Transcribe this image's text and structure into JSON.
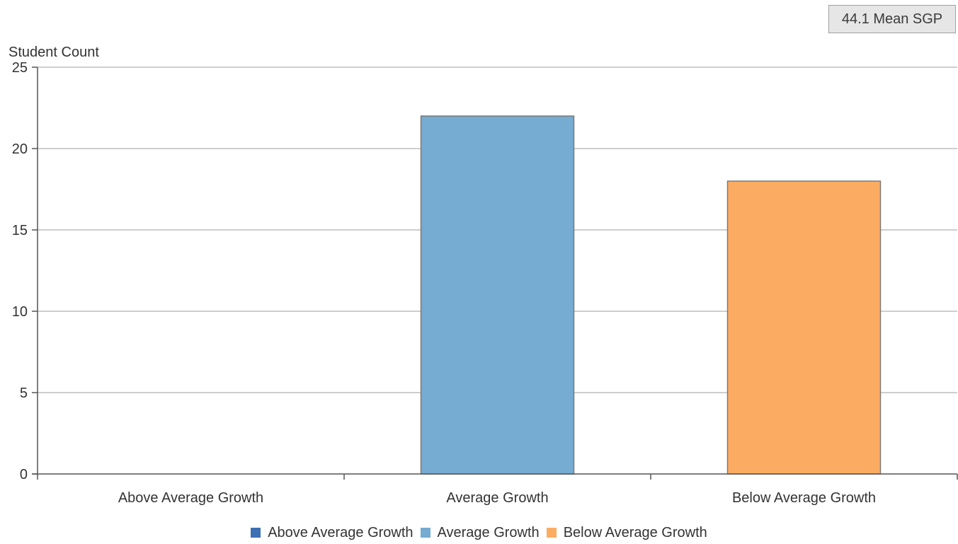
{
  "mean_badge": {
    "label": "44.1 Mean SGP"
  },
  "chart_data": {
    "type": "bar",
    "ylabel": "Student Count",
    "xlabel": "",
    "ylim": [
      0,
      25
    ],
    "yticks": [
      0,
      5,
      10,
      15,
      20,
      25
    ],
    "categories": [
      "Above Average Growth",
      "Average Growth",
      "Below Average Growth"
    ],
    "series": [
      {
        "name": "Above Average Growth",
        "values": [
          0,
          null,
          null
        ],
        "color": "#3d6fb4"
      },
      {
        "name": "Average Growth",
        "values": [
          null,
          22,
          null
        ],
        "color": "#76abd2"
      },
      {
        "name": "Below Average Growth",
        "values": [
          null,
          null,
          18
        ],
        "color": "#fcac62"
      }
    ],
    "grid": true,
    "legend": "bottom"
  },
  "colors": {
    "axis": "#555555",
    "grid": "#bdbdbd",
    "bar_stroke": "#7a7a7a",
    "text": "#333333"
  }
}
